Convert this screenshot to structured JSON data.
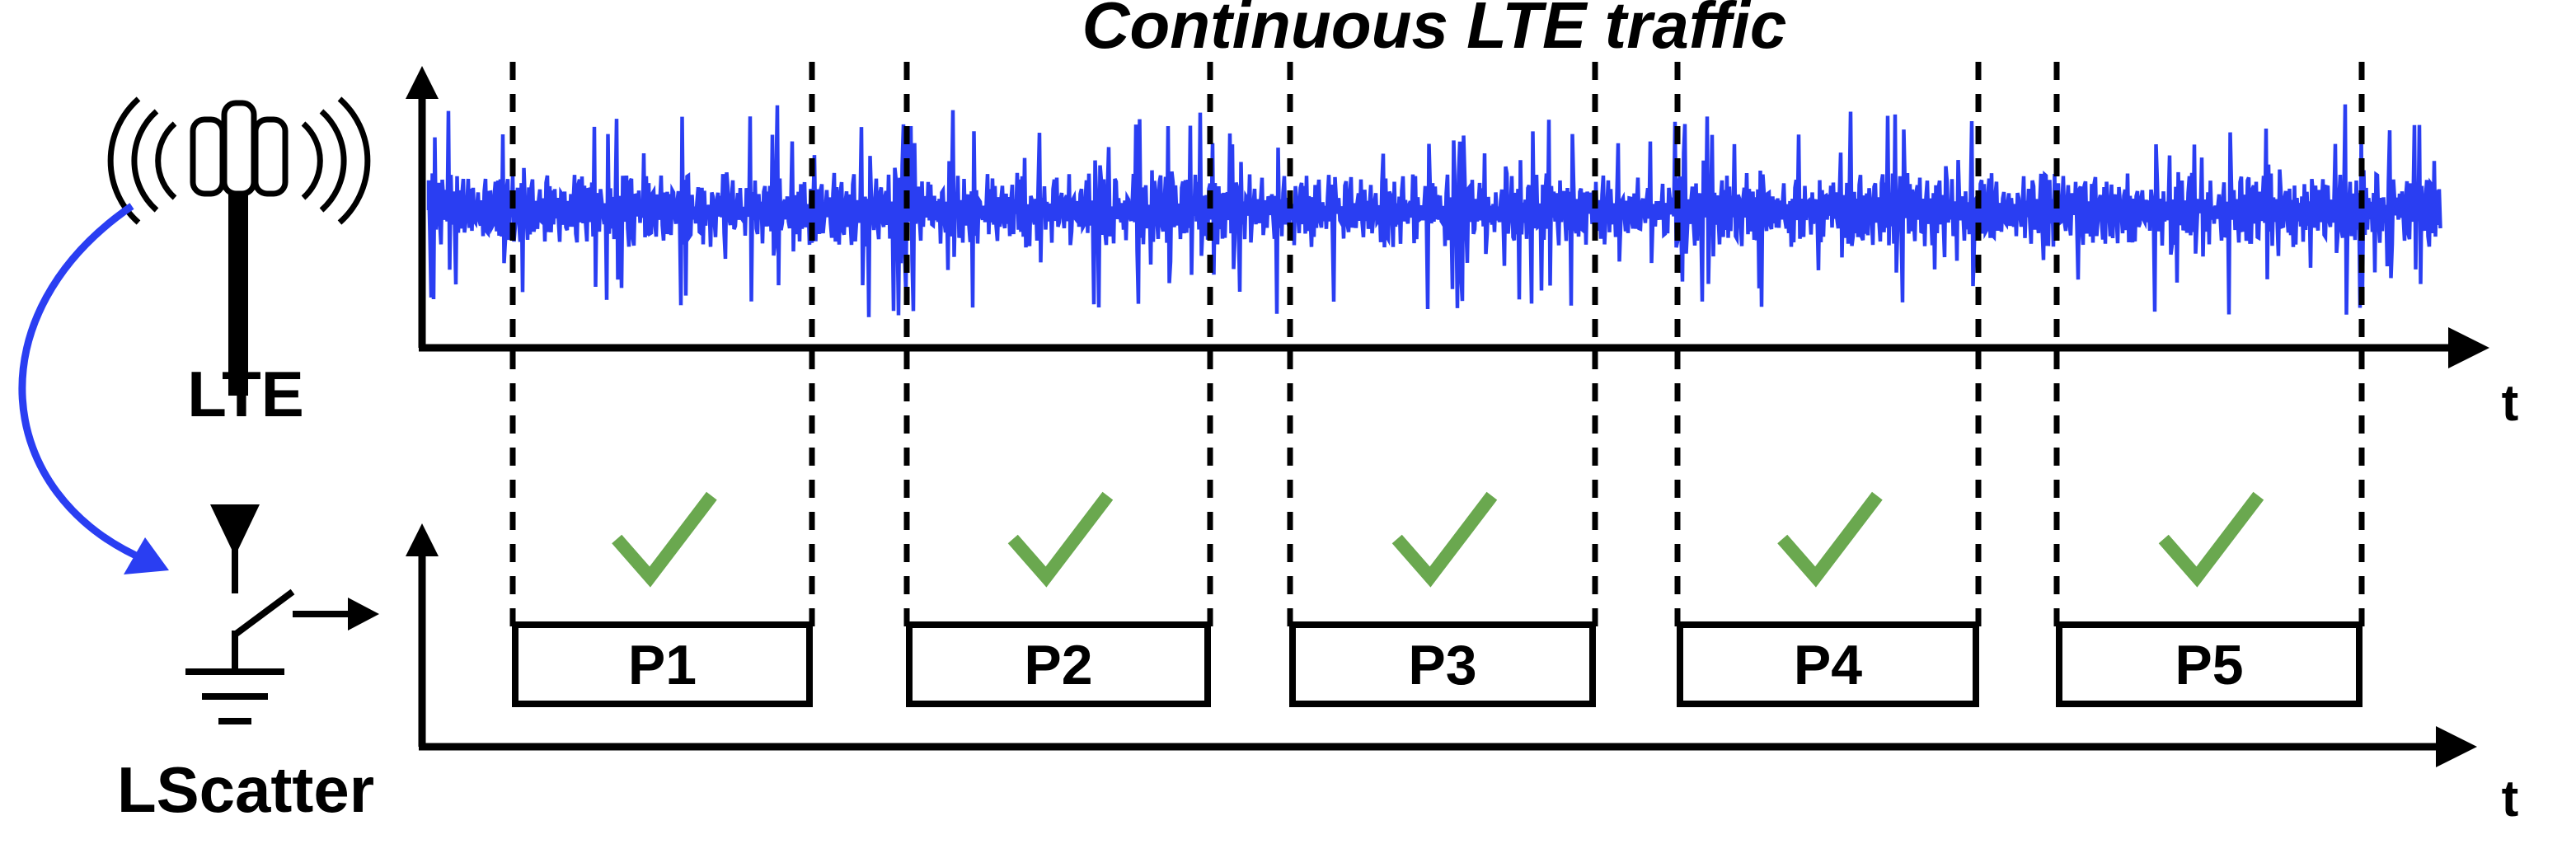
{
  "title": "Continuous LTE traffic",
  "lte_label": "LTE",
  "device_label": "LScatter",
  "axis_label_top": "t",
  "axis_label_bottom": "t",
  "packets": [
    "P1",
    "P2",
    "P3",
    "P4",
    "P5"
  ],
  "packet_status": [
    "check",
    "check",
    "check",
    "check",
    "check"
  ],
  "colors": {
    "signal": "#2a3ef2",
    "check": "#6aa84f",
    "arrow": "#2a3ef2",
    "ink": "#000000"
  },
  "icons": [
    "cell-tower-icon",
    "antenna-switch-icon",
    "checkmark-icon"
  ]
}
